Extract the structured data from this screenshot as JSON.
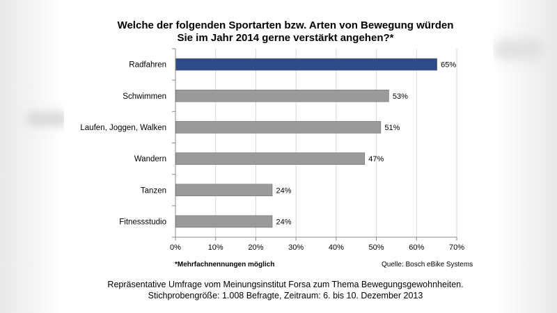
{
  "title_line1": "Welche der folgenden Sportarten bzw. Arten von Bewegung würden",
  "title_line2": "Sie im Jahr 2014 gerne verstärkt angehen?*",
  "footnote": "*Mehrfachnennungen möglich",
  "source": "Quelle: Bosch eBike Systems",
  "caption_line1": "Repräsentative Umfrage vom Meinungsinstitut Forsa zum Thema Bewegungsgewohnheiten.",
  "caption_line2": "Stichprobengröße: 1.008 Befragte, Zeitraum: 6. bis 10. Dezember 2013",
  "colors": {
    "highlight": "#2e4a87",
    "bar": "#9a9a9a",
    "grid": "#d9d9d9"
  },
  "chart_data": {
    "type": "bar",
    "orientation": "horizontal",
    "categories": [
      "Radfahren",
      "Schwimmen",
      "Laufen, Joggen, Walken",
      "Wandern",
      "Tanzen",
      "Fitnessstudio"
    ],
    "values": [
      65,
      53,
      51,
      47,
      24,
      24
    ],
    "value_labels": [
      "65%",
      "53%",
      "51%",
      "47%",
      "24%",
      "24%"
    ],
    "highlighted_category": "Radfahren",
    "xlim": [
      0,
      70
    ],
    "xticks": [
      "0%",
      "10%",
      "20%",
      "30%",
      "40%",
      "50%",
      "60%",
      "70%"
    ],
    "grid": true
  }
}
